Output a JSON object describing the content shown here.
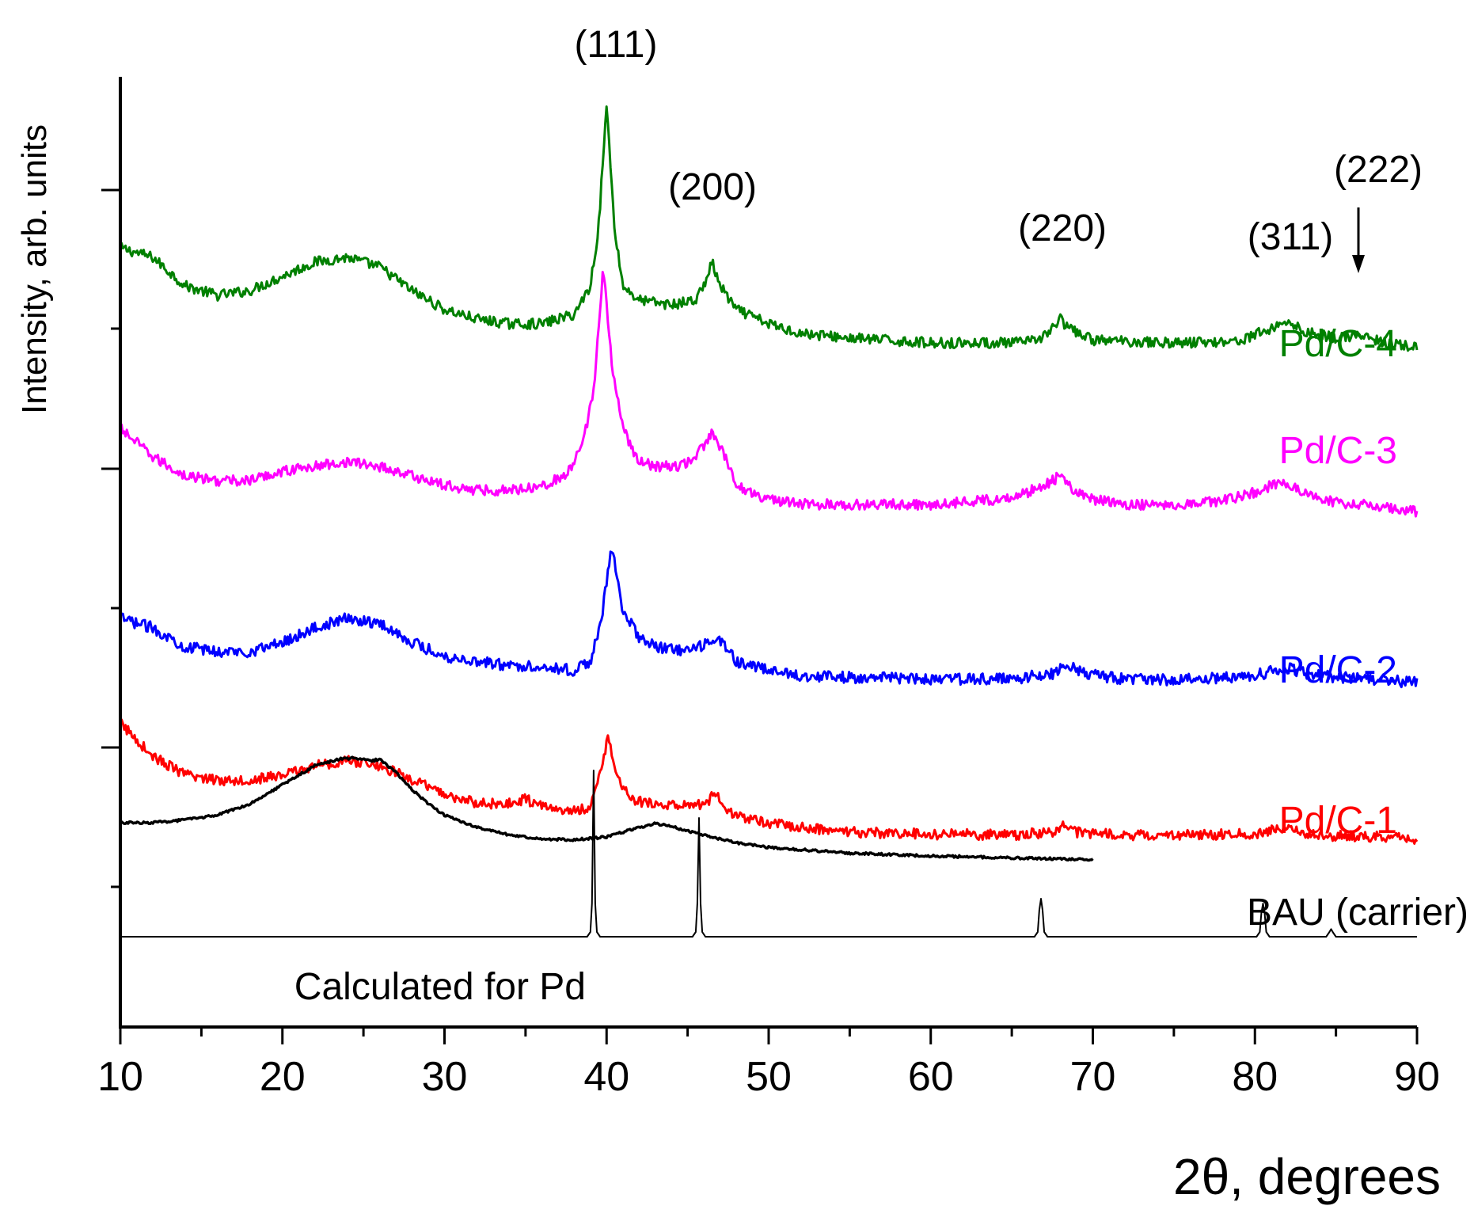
{
  "chart_data": {
    "type": "line",
    "title": "",
    "xlabel": "2θ, degrees",
    "ylabel": "Intensity, arb. units",
    "xlim": [
      10,
      90
    ],
    "ylim": [
      0,
      100
    ],
    "x_ticks": [
      10,
      20,
      30,
      40,
      50,
      60,
      70,
      80,
      90
    ],
    "x_tick_labels": [
      "10",
      "20",
      "30",
      "40",
      "50",
      "60",
      "70",
      "80",
      "90"
    ],
    "y_tick_labels_shown": false,
    "grid": false,
    "series": [
      {
        "name": "Pd/C-4",
        "color": "#008000",
        "points": [
          [
            10,
            82
          ],
          [
            12,
            81
          ],
          [
            14,
            78
          ],
          [
            16,
            77
          ],
          [
            18,
            77.5
          ],
          [
            20,
            79
          ],
          [
            22,
            80.5
          ],
          [
            24,
            81
          ],
          [
            26,
            80
          ],
          [
            28,
            77.5
          ],
          [
            30,
            75.5
          ],
          [
            32,
            74.5
          ],
          [
            34,
            74
          ],
          [
            36,
            74
          ],
          [
            38,
            75
          ],
          [
            39,
            78
          ],
          [
            39.5,
            84
          ],
          [
            40,
            97
          ],
          [
            40.5,
            84
          ],
          [
            41,
            78
          ],
          [
            42,
            76.5
          ],
          [
            44,
            76
          ],
          [
            45.5,
            76.5
          ],
          [
            46,
            78
          ],
          [
            46.5,
            80.5
          ],
          [
            47,
            78
          ],
          [
            48,
            75.5
          ],
          [
            50,
            74
          ],
          [
            52,
            73
          ],
          [
            55,
            72.5
          ],
          [
            60,
            72
          ],
          [
            65,
            72
          ],
          [
            66.5,
            72.2
          ],
          [
            67.5,
            73.5
          ],
          [
            68,
            74.5
          ],
          [
            68.5,
            73.5
          ],
          [
            70,
            72.3
          ],
          [
            75,
            72
          ],
          [
            79,
            72.2
          ],
          [
            81,
            73.5
          ],
          [
            82,
            74.3
          ],
          [
            83,
            73.2
          ],
          [
            85,
            72.5
          ],
          [
            86.3,
            72.8
          ],
          [
            88,
            72
          ],
          [
            90,
            71.5
          ]
        ]
      },
      {
        "name": "Pd/C-3",
        "color": "#ff00ff",
        "points": [
          [
            10,
            63
          ],
          [
            12,
            60
          ],
          [
            14,
            58
          ],
          [
            16,
            57.5
          ],
          [
            18,
            57.5
          ],
          [
            20,
            58.5
          ],
          [
            22,
            59
          ],
          [
            24,
            59.5
          ],
          [
            26,
            59
          ],
          [
            28,
            58
          ],
          [
            30,
            57
          ],
          [
            32,
            56.5
          ],
          [
            34,
            56.5
          ],
          [
            36,
            57
          ],
          [
            37.5,
            58
          ],
          [
            38.5,
            61
          ],
          [
            39.2,
            67
          ],
          [
            39.8,
            80
          ],
          [
            40.3,
            70
          ],
          [
            41,
            63
          ],
          [
            42,
            59.5
          ],
          [
            43,
            59
          ],
          [
            44.5,
            59
          ],
          [
            45.5,
            60
          ],
          [
            46.5,
            62.5
          ],
          [
            47.3,
            60
          ],
          [
            48,
            57
          ],
          [
            50,
            55.5
          ],
          [
            52,
            55
          ],
          [
            55,
            55
          ],
          [
            60,
            55
          ],
          [
            64,
            55.5
          ],
          [
            66,
            56.3
          ],
          [
            67.5,
            57.5
          ],
          [
            68,
            58
          ],
          [
            68.8,
            56.5
          ],
          [
            70,
            55.5
          ],
          [
            72,
            55
          ],
          [
            75,
            55
          ],
          [
            78,
            55.4
          ],
          [
            80,
            56.3
          ],
          [
            81.5,
            57.3
          ],
          [
            82.5,
            56.8
          ],
          [
            84,
            55.5
          ],
          [
            86,
            55
          ],
          [
            88,
            54.8
          ],
          [
            90,
            54.2
          ]
        ]
      },
      {
        "name": "Pd/C-2",
        "color": "#0000ff",
        "points": [
          [
            10,
            43
          ],
          [
            12,
            42
          ],
          [
            14,
            40
          ],
          [
            16,
            39.5
          ],
          [
            18,
            39.5
          ],
          [
            20,
            40.5
          ],
          [
            22,
            42
          ],
          [
            24,
            43
          ],
          [
            26,
            42.5
          ],
          [
            28,
            40.5
          ],
          [
            30,
            39
          ],
          [
            32,
            38.5
          ],
          [
            34,
            38
          ],
          [
            36,
            38
          ],
          [
            38,
            37.5
          ],
          [
            39,
            38.5
          ],
          [
            39.7,
            43
          ],
          [
            40.3,
            50.5
          ],
          [
            41,
            44
          ],
          [
            42,
            41
          ],
          [
            43,
            40
          ],
          [
            45,
            39.5
          ],
          [
            46.5,
            40.5
          ],
          [
            47,
            40.8
          ],
          [
            48,
            38.5
          ],
          [
            50,
            37.5
          ],
          [
            52,
            37
          ],
          [
            55,
            36.8
          ],
          [
            60,
            36.6
          ],
          [
            65,
            36.6
          ],
          [
            67.5,
            37.2
          ],
          [
            68.5,
            38.1
          ],
          [
            69.5,
            37.2
          ],
          [
            72,
            36.6
          ],
          [
            75,
            36.5
          ],
          [
            80,
            37
          ],
          [
            82,
            37.8
          ],
          [
            83,
            37.3
          ],
          [
            85,
            36.8
          ],
          [
            88,
            36.5
          ],
          [
            90,
            36.2
          ]
        ]
      },
      {
        "name": "Pd/C-1",
        "color": "#ff0000",
        "points": [
          [
            10,
            32
          ],
          [
            12,
            28.5
          ],
          [
            14,
            26.5
          ],
          [
            16,
            26
          ],
          [
            18,
            26
          ],
          [
            20,
            26.5
          ],
          [
            22,
            27.5
          ],
          [
            24,
            28
          ],
          [
            26,
            27.5
          ],
          [
            28,
            26
          ],
          [
            30,
            24.5
          ],
          [
            32,
            23.5
          ],
          [
            34,
            23.5
          ],
          [
            35,
            24
          ],
          [
            36,
            23.2
          ],
          [
            38,
            22.7
          ],
          [
            39,
            23.2
          ],
          [
            39.7,
            27
          ],
          [
            40.1,
            31
          ],
          [
            40.6,
            26.5
          ],
          [
            41.5,
            23.8
          ],
          [
            43,
            23.5
          ],
          [
            45,
            23.2
          ],
          [
            46.2,
            23.6
          ],
          [
            46.7,
            24.8
          ],
          [
            47.2,
            23.2
          ],
          [
            48,
            22.2
          ],
          [
            50,
            21.5
          ],
          [
            52,
            21
          ],
          [
            55,
            20.5
          ],
          [
            60,
            20.3
          ],
          [
            65,
            20.2
          ],
          [
            67.5,
            20.5
          ],
          [
            68.2,
            21.4
          ],
          [
            69,
            20.5
          ],
          [
            72,
            20.2
          ],
          [
            75,
            20.2
          ],
          [
            80,
            20.3
          ],
          [
            82,
            21
          ],
          [
            83,
            20.4
          ],
          [
            85,
            20.1
          ],
          [
            88,
            20
          ],
          [
            90,
            19.8
          ]
        ]
      },
      {
        "name": "BAU (carrier)",
        "color": "#000000",
        "points": [
          [
            10,
            21.5
          ],
          [
            12,
            21.5
          ],
          [
            14,
            21.8
          ],
          [
            16,
            22.3
          ],
          [
            18,
            23.5
          ],
          [
            20,
            25.5
          ],
          [
            22,
            27.5
          ],
          [
            23.5,
            28.2
          ],
          [
            24.5,
            28.3
          ],
          [
            25.5,
            28
          ],
          [
            26,
            28.2
          ],
          [
            27,
            26.8
          ],
          [
            28,
            25
          ],
          [
            29,
            23.5
          ],
          [
            30,
            22.3
          ],
          [
            32,
            21
          ],
          [
            34,
            20.2
          ],
          [
            36,
            19.8
          ],
          [
            38,
            19.7
          ],
          [
            40,
            20
          ],
          [
            42,
            21
          ],
          [
            43,
            21.4
          ],
          [
            44,
            21.1
          ],
          [
            46,
            20.2
          ],
          [
            48,
            19.4
          ],
          [
            50,
            18.9
          ],
          [
            55,
            18.3
          ],
          [
            60,
            18
          ],
          [
            65,
            17.8
          ],
          [
            70,
            17.6
          ]
        ]
      },
      {
        "name": "Calculated for Pd",
        "color": "#000000",
        "points": [
          [
            10,
            9.5
          ],
          [
            38.8,
            9.5
          ],
          [
            39.0,
            10
          ],
          [
            39.1,
            13
          ],
          [
            39.2,
            27
          ],
          [
            39.3,
            13
          ],
          [
            39.4,
            10
          ],
          [
            39.6,
            9.5
          ],
          [
            45.3,
            9.5
          ],
          [
            45.5,
            10
          ],
          [
            45.6,
            13
          ],
          [
            45.7,
            22
          ],
          [
            45.8,
            13
          ],
          [
            45.9,
            10
          ],
          [
            46.1,
            9.5
          ],
          [
            66.4,
            9.5
          ],
          [
            66.6,
            10
          ],
          [
            66.7,
            12.3
          ],
          [
            66.8,
            13.5
          ],
          [
            66.9,
            12.3
          ],
          [
            67.0,
            10
          ],
          [
            67.2,
            9.5
          ],
          [
            80.1,
            9.5
          ],
          [
            80.3,
            10
          ],
          [
            80.4,
            12
          ],
          [
            80.5,
            13
          ],
          [
            80.6,
            12
          ],
          [
            80.7,
            10
          ],
          [
            80.9,
            9.5
          ],
          [
            84.4,
            9.5
          ],
          [
            84.6,
            10
          ],
          [
            84.7,
            10.3
          ],
          [
            84.8,
            10
          ],
          [
            85.0,
            9.5
          ],
          [
            90,
            9.5
          ]
        ]
      }
    ],
    "annotations": [
      {
        "text": "(111)",
        "x": 40
      },
      {
        "text": "(200)",
        "x": 46.5
      },
      {
        "text": "(220)",
        "x": 68
      },
      {
        "text": "(311)",
        "x": 81.8
      },
      {
        "text": "(222)",
        "x": 86.3,
        "arrow": true
      }
    ]
  }
}
